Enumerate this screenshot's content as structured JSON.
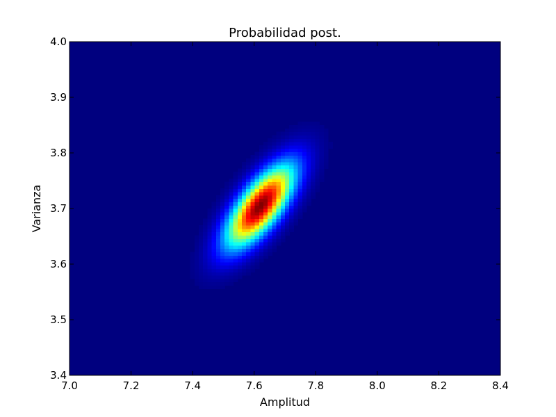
{
  "chart_data": {
    "type": "heatmap",
    "title": "Probabilidad post.",
    "xlabel": "Amplitud",
    "ylabel": "Varianza",
    "xlim": [
      7.0,
      8.4
    ],
    "ylim": [
      3.4,
      4.0
    ],
    "x_ticks": [
      7.0,
      7.2,
      7.4,
      7.6,
      7.8,
      8.0,
      8.2,
      8.4
    ],
    "x_tick_labels": [
      "7.0",
      "7.2",
      "7.4",
      "7.6",
      "7.8",
      "8.0",
      "8.2",
      "8.4"
    ],
    "y_ticks": [
      3.4,
      3.5,
      3.6,
      3.7,
      3.8,
      3.9,
      4.0
    ],
    "y_tick_labels": [
      "3.4",
      "3.5",
      "3.6",
      "3.7",
      "3.8",
      "3.9",
      "4.0"
    ],
    "colormap": "jet",
    "grid": false,
    "distribution": {
      "peak_x": 7.62,
      "peak_y": 3.705,
      "sigma_x": 0.075,
      "sigma_y": 0.05,
      "correlation": 0.72
    }
  }
}
